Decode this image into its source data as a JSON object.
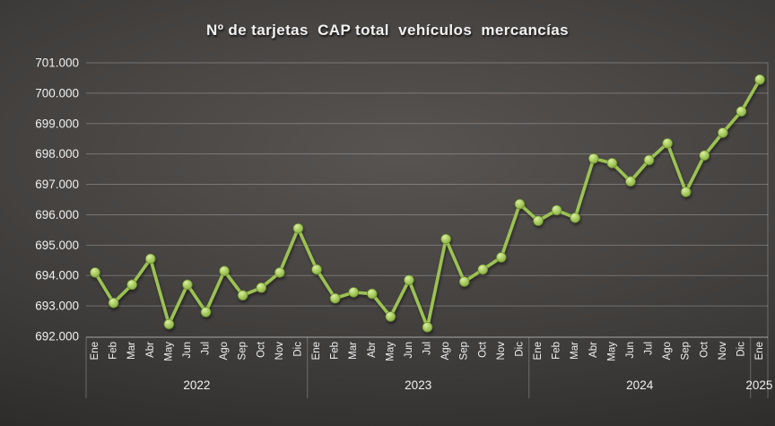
{
  "chart_data": {
    "type": "line",
    "title": "Nº de tarjetas  CAP total  vehículos  mercancías",
    "legend": "none",
    "grid": true,
    "ylim": [
      692000,
      701000
    ],
    "ytick_step": 1000,
    "ytick_labels": [
      "692.000",
      "693.000",
      "694.000",
      "695.000",
      "696.000",
      "697.000",
      "698.000",
      "699.000",
      "700.000",
      "701.000"
    ],
    "groups": [
      {
        "year": "2022",
        "months": [
          "Ene",
          "Feb",
          "Mar",
          "Abr",
          "May",
          "Jun",
          "Jul",
          "Ago",
          "Sep",
          "Oct",
          "Nov",
          "Dic"
        ]
      },
      {
        "year": "2023",
        "months": [
          "Ene",
          "Feb",
          "Mar",
          "Abr",
          "May",
          "Jun",
          "Jul",
          "Ago",
          "Sep",
          "Oct",
          "Nov",
          "Dic"
        ]
      },
      {
        "year": "2024",
        "months": [
          "Ene",
          "Feb",
          "Mar",
          "Abr",
          "May",
          "Jun",
          "Jul",
          "Ago",
          "Sep",
          "Oct",
          "Nov",
          "Dic"
        ]
      },
      {
        "year": "2025",
        "months": [
          "Ene"
        ]
      }
    ],
    "values": [
      694100,
      693100,
      693700,
      694550,
      692400,
      693700,
      692800,
      694150,
      693350,
      693600,
      694100,
      695550,
      694200,
      693250,
      693450,
      693400,
      692650,
      693850,
      692300,
      695200,
      693800,
      694200,
      694600,
      696350,
      695800,
      696150,
      695900,
      697850,
      697700,
      697100,
      697800,
      698350,
      696750,
      697950,
      698700,
      699400,
      700450
    ],
    "colors": {
      "line": "#9cc252",
      "marker_highlight": "#d9ef9f",
      "marker_mid": "#a6c95d",
      "marker_base": "#7fa639",
      "marker_edge": "#67872f",
      "text": "#f0f0f0",
      "gridline": "rgba(255,255,255,0.26)",
      "axisline": "rgba(255,255,255,0.55)"
    }
  }
}
